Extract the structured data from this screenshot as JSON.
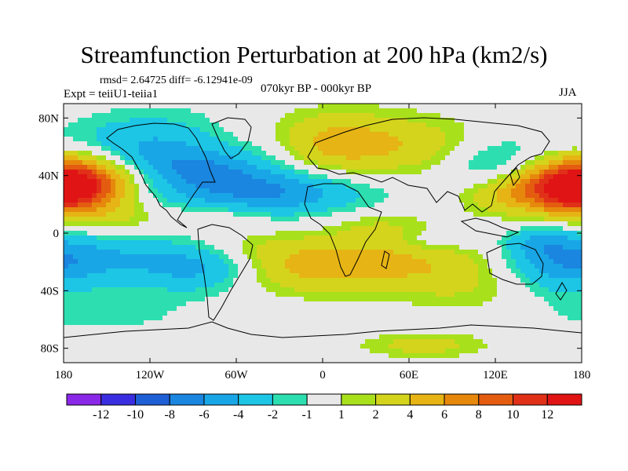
{
  "title": "Streamfunction Perturbation at 200 hPa (km2/s)",
  "stats": "rmsd= 2.64725  diff= -6.12941e-09",
  "experiment": "Expt = teiiU1-teiia1",
  "period": "070kyr BP - 000kyr BP",
  "season": "JJA",
  "lat_axis": {
    "labels": [
      "80N",
      "40N",
      "0",
      "40S",
      "80S"
    ],
    "values": [
      80,
      40,
      0,
      -40,
      -80
    ]
  },
  "lon_axis": {
    "labels": [
      "180",
      "120W",
      "60W",
      "0",
      "60E",
      "120E",
      "180"
    ],
    "values": [
      -180,
      -120,
      -60,
      0,
      60,
      120,
      180
    ]
  },
  "colorbar": {
    "labels": [
      "-12",
      "-10",
      "-8",
      "-6",
      "-4",
      "-2",
      "-1",
      "1",
      "2",
      "4",
      "6",
      "8",
      "10",
      "12"
    ],
    "colors": [
      "#8a28e8",
      "#3a2ee0",
      "#1f5fd6",
      "#1a86e0",
      "#19a6e6",
      "#1cc6e4",
      "#2ddfb0",
      "#e8e8e8",
      "#a8e01c",
      "#d4d41c",
      "#e6b414",
      "#e6880c",
      "#e45c10",
      "#e03018",
      "#e01414"
    ]
  },
  "field": {
    "levels": [
      -12,
      -10,
      -8,
      -6,
      -4,
      -2,
      -1,
      1,
      2,
      4,
      6,
      8,
      10,
      12
    ],
    "blobs": [
      {
        "lon": -172,
        "lat": 38,
        "amp": 10,
        "sx": 28,
        "sy": 14
      },
      {
        "lon": -155,
        "lat": 55,
        "amp": -2.4,
        "sx": 40,
        "sy": 14
      },
      {
        "lon": -110,
        "lat": 60,
        "amp": -3.2,
        "sx": 40,
        "sy": 18
      },
      {
        "lon": -80,
        "lat": 45,
        "amp": -4,
        "sx": 28,
        "sy": 10
      },
      {
        "lon": -40,
        "lat": 28,
        "amp": -6.2,
        "sx": 48,
        "sy": 11
      },
      {
        "lon": -35,
        "lat": 58,
        "amp": -2.4,
        "sx": 22,
        "sy": 14
      },
      {
        "lon": -140,
        "lat": 10,
        "amp": 1.6,
        "sx": 25,
        "sy": 8
      },
      {
        "lon": -70,
        "lat": 12,
        "amp": 1.4,
        "sx": 22,
        "sy": 8
      },
      {
        "lon": -150,
        "lat": -18,
        "amp": -3.5,
        "sx": 55,
        "sy": 12
      },
      {
        "lon": -85,
        "lat": -25,
        "amp": -3.5,
        "sx": 28,
        "sy": 12
      },
      {
        "lon": -150,
        "lat": -55,
        "amp": -1.6,
        "sx": 40,
        "sy": 10
      },
      {
        "lon": -50,
        "lat": -10,
        "amp": 1.6,
        "sx": 30,
        "sy": 8
      },
      {
        "lon": -20,
        "lat": -25,
        "amp": 3,
        "sx": 35,
        "sy": 12
      },
      {
        "lon": 35,
        "lat": -20,
        "amp": 4.2,
        "sx": 40,
        "sy": 14
      },
      {
        "lon": 40,
        "lat": 5,
        "amp": 1.6,
        "sx": 25,
        "sy": 7
      },
      {
        "lon": 10,
        "lat": 62,
        "amp": 5.5,
        "sx": 48,
        "sy": 15
      },
      {
        "lon": 90,
        "lat": 52,
        "amp": 2.5,
        "sx": 25,
        "sy": 16
      },
      {
        "lon": 110,
        "lat": 45,
        "amp": -4.5,
        "sx": 28,
        "sy": 15
      },
      {
        "lon": 120,
        "lat": 28,
        "amp": 3.5,
        "sx": 22,
        "sy": 10
      },
      {
        "lon": 172,
        "lat": 30,
        "amp": 10,
        "sx": 28,
        "sy": 12
      },
      {
        "lon": 100,
        "lat": -28,
        "amp": 2.4,
        "sx": 32,
        "sy": 18
      },
      {
        "lon": 165,
        "lat": -20,
        "amp": -4,
        "sx": 28,
        "sy": 15
      },
      {
        "lon": 150,
        "lat": -5,
        "amp": -2.5,
        "sx": 15,
        "sy": 7
      },
      {
        "lon": 80,
        "lat": -5,
        "amp": -1.8,
        "sx": 22,
        "sy": 6
      },
      {
        "lon": 70,
        "lat": -78,
        "amp": 2.8,
        "sx": 30,
        "sy": 6
      }
    ]
  }
}
